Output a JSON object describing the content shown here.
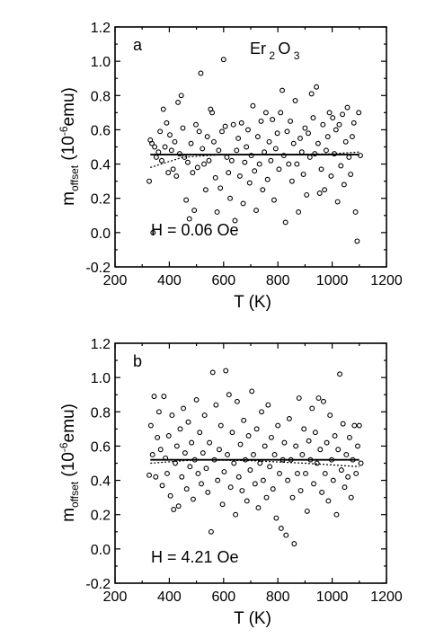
{
  "chart_data": [
    {
      "type": "scatter",
      "panel_label": "a",
      "annotation": "H = 0.06 Oe",
      "compound": {
        "base1": "Er",
        "sub1": "2",
        "base2": "O",
        "sub2": "3"
      },
      "xlabel": "T  (K)",
      "ylabel": {
        "main": "m",
        "sub": "offset",
        "unit_pre": " (10",
        "unit_sup": "-6",
        "unit_post": "emu)"
      },
      "xlim": [
        200,
        1200
      ],
      "ylim": [
        -0.2,
        1.2
      ],
      "x_ticks": [
        "200",
        "400",
        "600",
        "800",
        "1000",
        "1200"
      ],
      "y_ticks": [
        "-0.2",
        "0.0",
        "0.2",
        "0.4",
        "0.6",
        "0.8",
        "1.0",
        "1.2"
      ],
      "grid": false,
      "fit_line": {
        "x": [
          330,
          1100
        ],
        "y": [
          0.455,
          0.455
        ]
      },
      "dotted_line": {
        "x": [
          330,
          450,
          600,
          800,
          1000,
          1100
        ],
        "y": [
          0.38,
          0.44,
          0.455,
          0.455,
          0.46,
          0.47
        ]
      },
      "points": [
        [
          326,
          0.3
        ],
        [
          330,
          0.54
        ],
        [
          336,
          0.52
        ],
        [
          340,
          0.0
        ],
        [
          346,
          0.5
        ],
        [
          352,
          0.44
        ],
        [
          360,
          0.47
        ],
        [
          366,
          0.59
        ],
        [
          372,
          0.42
        ],
        [
          378,
          0.72
        ],
        [
          384,
          0.5
        ],
        [
          390,
          0.64
        ],
        [
          396,
          0.35
        ],
        [
          402,
          0.57
        ],
        [
          408,
          0.48
        ],
        [
          414,
          0.37
        ],
        [
          420,
          0.53
        ],
        [
          426,
          0.33
        ],
        [
          432,
          0.76
        ],
        [
          438,
          0.46
        ],
        [
          444,
          0.8
        ],
        [
          450,
          0.61
        ],
        [
          456,
          0.44
        ],
        [
          462,
          0.19
        ],
        [
          468,
          0.41
        ],
        [
          474,
          0.08
        ],
        [
          480,
          0.52
        ],
        [
          486,
          0.35
        ],
        [
          492,
          0.13
        ],
        [
          498,
          0.63
        ],
        [
          504,
          0.38
        ],
        [
          510,
          0.59
        ],
        [
          516,
          0.93
        ],
        [
          522,
          0.49
        ],
        [
          528,
          0.4
        ],
        [
          534,
          0.25
        ],
        [
          540,
          0.56
        ],
        [
          546,
          0.42
        ],
        [
          552,
          0.72
        ],
        [
          558,
          0.7
        ],
        [
          564,
          0.53
        ],
        [
          570,
          0.32
        ],
        [
          576,
          0.12
        ],
        [
          582,
          0.48
        ],
        [
          588,
          0.26
        ],
        [
          594,
          0.59
        ],
        [
          600,
          1.01
        ],
        [
          606,
          0.62
        ],
        [
          612,
          0.44
        ],
        [
          618,
          0.35
        ],
        [
          624,
          0.2
        ],
        [
          630,
          0.42
        ],
        [
          636,
          0.63
        ],
        [
          642,
          0.07
        ],
        [
          648,
          0.48
        ],
        [
          654,
          0.55
        ],
        [
          660,
          0.33
        ],
        [
          666,
          0.64
        ],
        [
          672,
          0.17
        ],
        [
          678,
          0.41
        ],
        [
          684,
          0.5
        ],
        [
          690,
          0.6
        ],
        [
          696,
          0.29
        ],
        [
          702,
          0.45
        ],
        [
          708,
          0.74
        ],
        [
          714,
          0.36
        ],
        [
          720,
          0.13
        ],
        [
          726,
          0.56
        ],
        [
          732,
          0.4
        ],
        [
          738,
          0.65
        ],
        [
          744,
          0.25
        ],
        [
          750,
          0.47
        ],
        [
          756,
          0.7
        ],
        [
          762,
          0.31
        ],
        [
          768,
          0.53
        ],
        [
          774,
          0.42
        ],
        [
          780,
          0.66
        ],
        [
          786,
          0.19
        ],
        [
          792,
          0.49
        ],
        [
          798,
          0.58
        ],
        [
          804,
          0.37
        ],
        [
          810,
          0.7
        ],
        [
          816,
          0.83
        ],
        [
          822,
          0.45
        ],
        [
          828,
          0.06
        ],
        [
          834,
          0.59
        ],
        [
          840,
          0.4
        ],
        [
          846,
          0.65
        ],
        [
          852,
          0.3
        ],
        [
          858,
          0.52
        ],
        [
          864,
          0.77
        ],
        [
          870,
          0.4
        ],
        [
          876,
          0.12
        ],
        [
          882,
          0.55
        ],
        [
          888,
          0.47
        ],
        [
          894,
          0.34
        ],
        [
          900,
          0.61
        ],
        [
          906,
          0.22
        ],
        [
          912,
          0.58
        ],
        [
          918,
          0.44
        ],
        [
          924,
          0.81
        ],
        [
          930,
          0.67
        ],
        [
          936,
          0.46
        ],
        [
          942,
          0.85
        ],
        [
          948,
          0.52
        ],
        [
          954,
          0.23
        ],
        [
          960,
          0.37
        ],
        [
          966,
          0.63
        ],
        [
          972,
          0.25
        ],
        [
          978,
          0.48
        ],
        [
          984,
          0.56
        ],
        [
          990,
          0.7
        ],
        [
          996,
          0.33
        ],
        [
          1002,
          0.67
        ],
        [
          1008,
          0.46
        ],
        [
          1014,
          0.6
        ],
        [
          1020,
          0.18
        ],
        [
          1026,
          0.63
        ],
        [
          1032,
          0.39
        ],
        [
          1038,
          0.69
        ],
        [
          1044,
          0.28
        ],
        [
          1050,
          0.53
        ],
        [
          1056,
          0.73
        ],
        [
          1062,
          0.44
        ],
        [
          1068,
          0.34
        ],
        [
          1074,
          0.56
        ],
        [
          1080,
          0.64
        ],
        [
          1086,
          0.12
        ],
        [
          1092,
          -0.05
        ],
        [
          1098,
          0.7
        ],
        [
          1104,
          0.45
        ]
      ]
    },
    {
      "type": "scatter",
      "panel_label": "b",
      "annotation": "H = 4.21 Oe",
      "xlabel": "T  (K)",
      "ylabel": {
        "main": "m",
        "sub": "offset",
        "unit_pre": " (10",
        "unit_sup": "-6",
        "unit_post": "emu)"
      },
      "xlim": [
        200,
        1200
      ],
      "ylim": [
        -0.2,
        1.2
      ],
      "x_ticks": [
        "200",
        "400",
        "600",
        "800",
        "1000",
        "1200"
      ],
      "y_ticks": [
        "-0.2",
        "0.0",
        "0.2",
        "0.4",
        "0.6",
        "0.8",
        "1.0",
        "1.2"
      ],
      "grid": false,
      "fit_line": {
        "x": [
          330,
          1100
        ],
        "y": [
          0.52,
          0.52
        ]
      },
      "dotted_line": {
        "x": [
          330,
          500,
          700,
          900,
          1100
        ],
        "y": [
          0.5,
          0.52,
          0.515,
          0.5,
          0.48
        ]
      },
      "points": [
        [
          326,
          0.43
        ],
        [
          332,
          0.72
        ],
        [
          338,
          0.55
        ],
        [
          344,
          0.89
        ],
        [
          350,
          0.42
        ],
        [
          356,
          0.65
        ],
        [
          362,
          0.8
        ],
        [
          368,
          0.58
        ],
        [
          374,
          0.37
        ],
        [
          380,
          0.89
        ],
        [
          386,
          0.53
        ],
        [
          392,
          0.44
        ],
        [
          398,
          0.66
        ],
        [
          404,
          0.31
        ],
        [
          410,
          0.78
        ],
        [
          416,
          0.23
        ],
        [
          422,
          0.5
        ],
        [
          428,
          0.6
        ],
        [
          434,
          0.25
        ],
        [
          440,
          0.7
        ],
        [
          446,
          0.42
        ],
        [
          452,
          0.82
        ],
        [
          458,
          0.56
        ],
        [
          464,
          0.35
        ],
        [
          470,
          0.74
        ],
        [
          476,
          0.48
        ],
        [
          482,
          0.62
        ],
        [
          488,
          0.29
        ],
        [
          494,
          0.52
        ],
        [
          500,
          0.87
        ],
        [
          506,
          0.44
        ],
        [
          512,
          0.68
        ],
        [
          518,
          0.38
        ],
        [
          524,
          0.56
        ],
        [
          530,
          0.78
        ],
        [
          536,
          0.47
        ],
        [
          542,
          0.33
        ],
        [
          548,
          0.62
        ],
        [
          554,
          0.1
        ],
        [
          560,
          1.03
        ],
        [
          566,
          0.52
        ],
        [
          572,
          0.84
        ],
        [
          578,
          0.4
        ],
        [
          584,
          0.58
        ],
        [
          590,
          0.72
        ],
        [
          596,
          0.26
        ],
        [
          602,
          0.45
        ],
        [
          608,
          1.04
        ],
        [
          614,
          0.55
        ],
        [
          620,
          0.9
        ],
        [
          626,
          0.36
        ],
        [
          632,
          0.68
        ],
        [
          638,
          0.5
        ],
        [
          644,
          0.2
        ],
        [
          650,
          0.86
        ],
        [
          656,
          0.42
        ],
        [
          662,
          0.61
        ],
        [
          668,
          0.34
        ],
        [
          674,
          0.75
        ],
        [
          680,
          0.52
        ],
        [
          686,
          0.28
        ],
        [
          692,
          0.66
        ],
        [
          698,
          0.46
        ],
        [
          704,
          0.92
        ],
        [
          710,
          0.55
        ],
        [
          716,
          0.38
        ],
        [
          722,
          0.7
        ],
        [
          728,
          0.24
        ],
        [
          734,
          0.5
        ],
        [
          740,
          0.8
        ],
        [
          746,
          0.4
        ],
        [
          752,
          0.6
        ],
        [
          758,
          0.3
        ],
        [
          764,
          0.84
        ],
        [
          770,
          0.48
        ],
        [
          776,
          0.65
        ],
        [
          782,
          0.35
        ],
        [
          788,
          0.55
        ],
        [
          794,
          0.18
        ],
        [
          800,
          0.72
        ],
        [
          806,
          0.44
        ],
        [
          812,
          0.12
        ],
        [
          818,
          0.52
        ],
        [
          824,
          0.62
        ],
        [
          830,
          0.08
        ],
        [
          836,
          0.4
        ],
        [
          842,
          0.76
        ],
        [
          848,
          0.52
        ],
        [
          854,
          0.3
        ],
        [
          860,
          0.03
        ],
        [
          866,
          0.6
        ],
        [
          872,
          0.44
        ],
        [
          878,
          0.88
        ],
        [
          884,
          0.34
        ],
        [
          890,
          0.55
        ],
        [
          896,
          0.7
        ],
        [
          902,
          0.44
        ],
        [
          908,
          0.22
        ],
        [
          914,
          0.63
        ],
        [
          920,
          0.52
        ],
        [
          926,
          0.82
        ],
        [
          932,
          0.38
        ],
        [
          938,
          0.68
        ],
        [
          944,
          0.5
        ],
        [
          950,
          0.88
        ],
        [
          956,
          0.58
        ],
        [
          962,
          0.33
        ],
        [
          968,
          0.86
        ],
        [
          974,
          0.44
        ],
        [
          980,
          0.62
        ],
        [
          986,
          0.28
        ],
        [
          992,
          0.78
        ],
        [
          998,
          0.52
        ],
        [
          1004,
          0.4
        ],
        [
          1010,
          0.66
        ],
        [
          1016,
          0.2
        ],
        [
          1022,
          0.58
        ],
        [
          1028,
          1.02
        ],
        [
          1034,
          0.46
        ],
        [
          1040,
          0.73
        ],
        [
          1046,
          0.36
        ],
        [
          1052,
          0.55
        ],
        [
          1058,
          0.42
        ],
        [
          1064,
          0.65
        ],
        [
          1070,
          0.3
        ],
        [
          1076,
          0.52
        ],
        [
          1082,
          0.72
        ],
        [
          1088,
          0.44
        ],
        [
          1094,
          0.6
        ],
        [
          1100,
          0.72
        ],
        [
          1106,
          0.5
        ]
      ]
    }
  ]
}
